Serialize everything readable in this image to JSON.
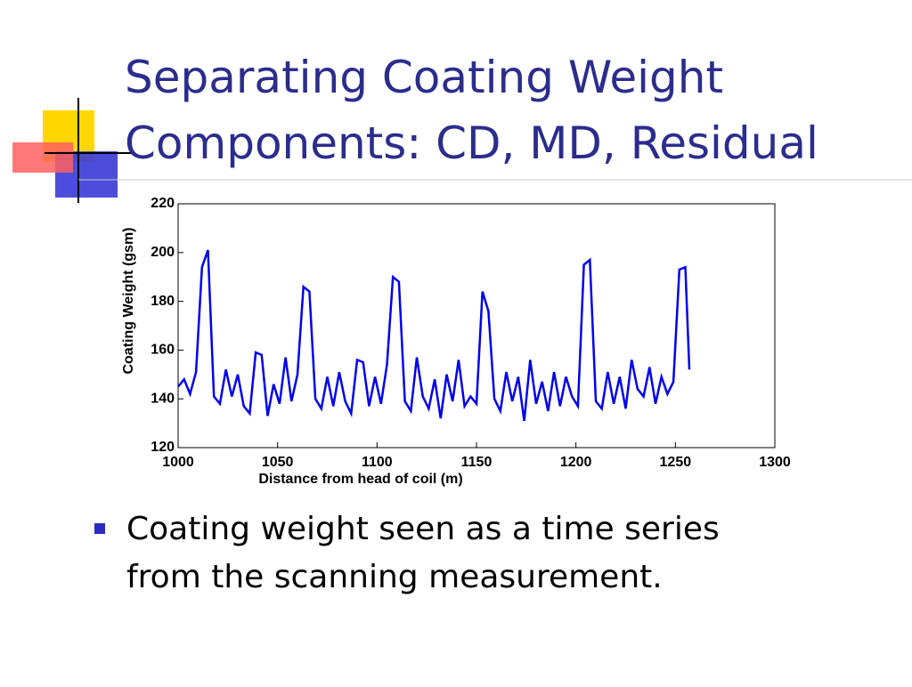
{
  "slide": {
    "title_lines": [
      "Separating Coating Weight",
      "Components: CD, MD, Residual"
    ],
    "bullet": [
      "Coating weight seen as a time series",
      "from the scanning measurement."
    ]
  },
  "chart_data": {
    "type": "line",
    "xlabel": "Distance from head of coil (m)",
    "ylabel": "Coating Weight (gsm)",
    "x": [
      1000,
      1003,
      1006,
      1009,
      1012,
      1015,
      1018,
      1021,
      1024,
      1027,
      1030,
      1033,
      1036,
      1039,
      1042,
      1045,
      1048,
      1051,
      1054,
      1057,
      1060,
      1063,
      1066,
      1069,
      1072,
      1075,
      1078,
      1081,
      1084,
      1087,
      1090,
      1093,
      1096,
      1099,
      1102,
      1105,
      1108,
      1111,
      1114,
      1117,
      1120,
      1123,
      1126,
      1129,
      1132,
      1135,
      1138,
      1141,
      1144,
      1147,
      1150,
      1153,
      1156,
      1159,
      1162,
      1165,
      1168,
      1171,
      1174,
      1177,
      1180,
      1183,
      1186,
      1189,
      1192,
      1195,
      1198,
      1201,
      1204,
      1207,
      1210,
      1213,
      1216,
      1219,
      1222,
      1225,
      1228,
      1231,
      1234,
      1237,
      1240,
      1243,
      1246,
      1249,
      1252,
      1255,
      1257
    ],
    "series": [
      {
        "name": "Coating weight",
        "color": "#0000ee",
        "values": [
          145,
          148,
          142,
          151,
          194,
          201,
          141,
          138,
          152,
          141,
          150,
          137,
          134,
          159,
          158,
          133,
          146,
          138,
          157,
          139,
          150,
          186,
          184,
          140,
          136,
          149,
          137,
          151,
          139,
          134,
          156,
          155,
          137,
          149,
          138,
          154,
          190,
          188,
          139,
          135,
          157,
          141,
          136,
          148,
          132,
          150,
          139,
          156,
          137,
          141,
          138,
          184,
          176,
          140,
          135,
          151,
          139,
          149,
          131,
          156,
          138,
          147,
          135,
          151,
          137,
          149,
          141,
          137,
          195,
          197,
          139,
          136,
          151,
          138,
          149,
          136,
          156,
          144,
          141,
          153,
          138,
          149,
          142,
          147,
          193,
          194,
          152
        ]
      }
    ],
    "xlim": [
      1000,
      1300
    ],
    "xticks": [
      1000,
      1050,
      1100,
      1150,
      1200,
      1250,
      1300
    ],
    "ylim": [
      120,
      220
    ],
    "yticks": [
      120,
      140,
      160,
      180,
      200,
      220
    ]
  }
}
